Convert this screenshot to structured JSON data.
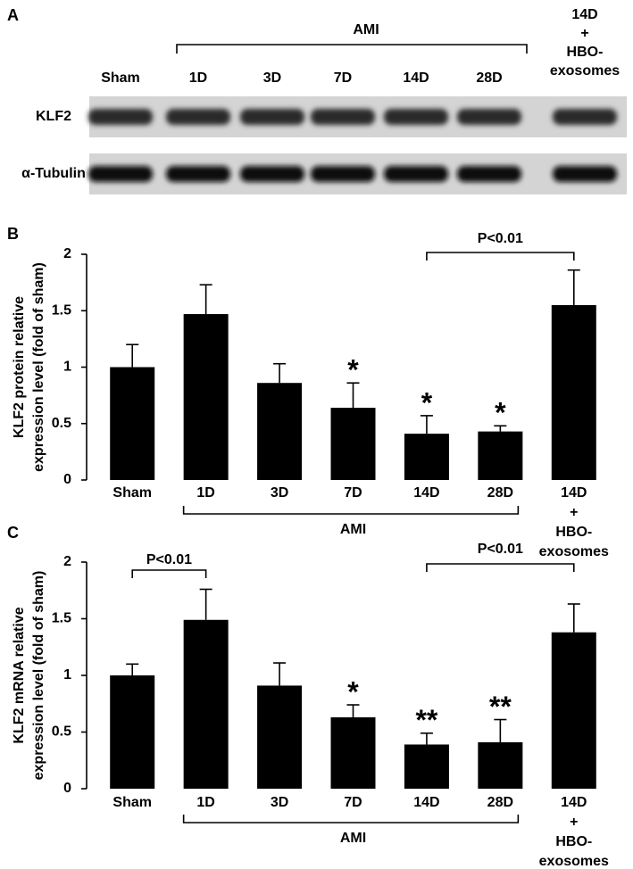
{
  "panel_a": {
    "label": "A",
    "group_label": "AMI",
    "lanes": [
      "Sham",
      "1D",
      "3D",
      "7D",
      "14D",
      "28D",
      "14D\n+\nHBO-\nexosomes"
    ],
    "rows": [
      "KLF2",
      "α-Tubulin"
    ]
  },
  "chart_data": [
    {
      "type": "bar",
      "panel": "B",
      "ylabel": [
        "KLF2 protein relative",
        "expression level (fold of sham)"
      ],
      "categories": [
        "Sham",
        "1D",
        "3D",
        "7D",
        "14D",
        "28D",
        "14D\n+\nHBO-\nexosomes"
      ],
      "values": [
        1.0,
        1.47,
        0.86,
        0.64,
        0.41,
        0.43,
        1.55
      ],
      "errors": [
        0.2,
        0.26,
        0.17,
        0.22,
        0.16,
        0.05,
        0.31
      ],
      "significance": [
        null,
        null,
        null,
        "*",
        "*",
        "*",
        null
      ],
      "group_label": "AMI",
      "comparisons": [
        "P<0.01"
      ],
      "color": "#000000",
      "ylim": [
        0,
        2
      ],
      "yticks": [
        0,
        0.5,
        1,
        1.5,
        2
      ],
      "grid": false
    },
    {
      "type": "bar",
      "panel": "C",
      "ylabel": [
        "KLF2 mRNA relative",
        "expression level (fold of sham)"
      ],
      "categories": [
        "Sham",
        "1D",
        "3D",
        "7D",
        "14D",
        "28D",
        "14D\n+\nHBO-\nexosomes"
      ],
      "values": [
        1.0,
        1.49,
        0.91,
        0.63,
        0.39,
        0.41,
        1.38
      ],
      "errors": [
        0.1,
        0.27,
        0.2,
        0.11,
        0.1,
        0.2,
        0.25
      ],
      "significance": [
        null,
        null,
        null,
        "*",
        "**",
        "**",
        null
      ],
      "group_label": "AMI",
      "comparisons": [
        "P<0.01",
        "P<0.01"
      ],
      "color": "#000000",
      "ylim": [
        0,
        2
      ],
      "yticks": [
        0,
        0.5,
        1,
        1.5,
        2
      ],
      "grid": false
    }
  ]
}
